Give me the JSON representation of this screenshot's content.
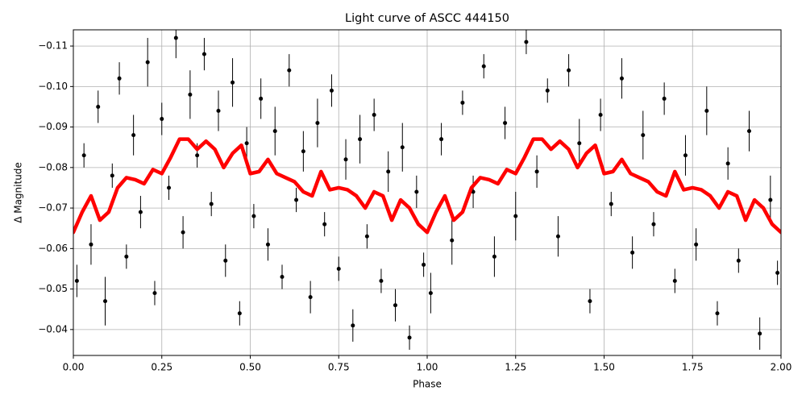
{
  "chart_data": {
    "type": "scatter",
    "title": "Light curve of ASCC 444150",
    "x_label": "Phase",
    "y_label": "Δ Magnitude",
    "xlim": [
      0,
      2
    ],
    "ylim": [
      -0.0336,
      -0.114
    ],
    "grid": true,
    "xticks": [
      {
        "value": 0,
        "label": "0.00"
      },
      {
        "value": 0.25,
        "label": "0.25"
      },
      {
        "value": 0.5,
        "label": "0.50"
      },
      {
        "value": 0.75,
        "label": "0.75"
      },
      {
        "value": 1,
        "label": "1.00"
      },
      {
        "value": 1.25,
        "label": "1.25"
      },
      {
        "value": 1.5,
        "label": "1.50"
      },
      {
        "value": 1.75,
        "label": "1.75"
      },
      {
        "value": 2,
        "label": "2.00"
      }
    ],
    "yticks": [
      {
        "value": -0.04,
        "label": "−0.04"
      },
      {
        "value": -0.05,
        "label": "−0.05"
      },
      {
        "value": -0.06,
        "label": "−0.06"
      },
      {
        "value": -0.07,
        "label": "−0.07"
      },
      {
        "value": -0.08,
        "label": "−0.08"
      },
      {
        "value": -0.09,
        "label": "−0.09"
      },
      {
        "value": -0.1,
        "label": "−0.10"
      },
      {
        "value": -0.11,
        "label": "−0.11"
      }
    ],
    "series": [
      {
        "type": "scatter",
        "color": "#000000",
        "x": [
          0.01,
          0.03,
          0.05,
          0.07,
          0.09,
          0.11,
          0.13,
          0.15,
          0.17,
          0.19,
          0.21,
          0.23,
          0.25,
          0.27,
          0.29,
          0.31,
          0.33,
          0.35,
          0.37,
          0.39,
          0.41,
          0.43,
          0.45,
          0.47,
          0.49,
          0.51,
          0.53,
          0.55,
          0.57,
          0.59,
          0.61,
          0.63,
          0.65,
          0.67,
          0.69,
          0.71,
          0.73,
          0.75,
          0.77,
          0.79,
          0.81,
          0.83,
          0.85,
          0.87,
          0.89,
          0.91,
          0.93,
          0.95,
          0.97,
          0.99,
          1.01,
          1.04,
          1.07,
          1.1,
          1.13,
          1.16,
          1.19,
          1.22,
          1.25,
          1.28,
          1.31,
          1.34,
          1.37,
          1.4,
          1.43,
          1.46,
          1.49,
          1.52,
          1.55,
          1.58,
          1.61,
          1.64,
          1.67,
          1.7,
          1.73,
          1.76,
          1.79,
          1.82,
          1.85,
          1.88,
          1.91,
          1.94,
          1.97,
          1.99
        ],
        "values": [
          -0.052,
          -0.083,
          -0.061,
          -0.095,
          -0.047,
          -0.078,
          -0.102,
          -0.058,
          -0.088,
          -0.069,
          -0.106,
          -0.049,
          -0.092,
          -0.075,
          -0.112,
          -0.064,
          -0.098,
          -0.083,
          -0.108,
          -0.071,
          -0.094,
          -0.057,
          -0.101,
          -0.044,
          -0.086,
          -0.068,
          -0.097,
          -0.061,
          -0.089,
          -0.053,
          -0.104,
          -0.072,
          -0.084,
          -0.048,
          -0.091,
          -0.066,
          -0.099,
          -0.055,
          -0.082,
          -0.041,
          -0.087,
          -0.063,
          -0.093,
          -0.052,
          -0.079,
          -0.046,
          -0.085,
          -0.038,
          -0.074,
          -0.056,
          -0.049,
          -0.087,
          -0.062,
          -0.096,
          -0.074,
          -0.105,
          -0.058,
          -0.091,
          -0.068,
          -0.111,
          -0.079,
          -0.099,
          -0.063,
          -0.104,
          -0.086,
          -0.047,
          -0.093,
          -0.071,
          -0.102,
          -0.059,
          -0.088,
          -0.066,
          -0.097,
          -0.052,
          -0.083,
          -0.061,
          -0.094,
          -0.044,
          -0.081,
          -0.057,
          -0.089,
          -0.039,
          -0.072,
          -0.054
        ],
        "yerr": [
          0.004,
          0.003,
          0.005,
          0.004,
          0.006,
          0.003,
          0.004,
          0.003,
          0.005,
          0.004,
          0.006,
          0.003,
          0.004,
          0.003,
          0.005,
          0.004,
          0.006,
          0.003,
          0.004,
          0.003,
          0.005,
          0.004,
          0.006,
          0.003,
          0.004,
          0.003,
          0.005,
          0.004,
          0.006,
          0.003,
          0.004,
          0.003,
          0.005,
          0.004,
          0.006,
          0.003,
          0.004,
          0.003,
          0.005,
          0.004,
          0.006,
          0.003,
          0.004,
          0.003,
          0.005,
          0.004,
          0.006,
          0.003,
          0.004,
          0.003,
          0.005,
          0.004,
          0.006,
          0.003,
          0.004,
          0.003,
          0.005,
          0.004,
          0.006,
          0.003,
          0.004,
          0.003,
          0.005,
          0.004,
          0.006,
          0.003,
          0.004,
          0.003,
          0.005,
          0.004,
          0.006,
          0.003,
          0.004,
          0.003,
          0.005,
          0.004,
          0.006,
          0.003,
          0.004,
          0.003,
          0.005,
          0.004,
          0.006,
          0.003
        ]
      },
      {
        "type": "line",
        "color": "#ff0000",
        "x": [
          0,
          0.025,
          0.05,
          0.075,
          0.1,
          0.125,
          0.15,
          0.175,
          0.2,
          0.225,
          0.25,
          0.275,
          0.3,
          0.325,
          0.35,
          0.375,
          0.4,
          0.425,
          0.45,
          0.475,
          0.5,
          0.525,
          0.55,
          0.575,
          0.6,
          0.625,
          0.65,
          0.675,
          0.7,
          0.725,
          0.75,
          0.775,
          0.8,
          0.825,
          0.85,
          0.875,
          0.9,
          0.925,
          0.95,
          0.975,
          1,
          1.025,
          1.05,
          1.075,
          1.1,
          1.125,
          1.15,
          1.175,
          1.2,
          1.225,
          1.25,
          1.275,
          1.3,
          1.325,
          1.35,
          1.375,
          1.4,
          1.425,
          1.45,
          1.475,
          1.5,
          1.525,
          1.55,
          1.575,
          1.6,
          1.625,
          1.65,
          1.675,
          1.7,
          1.725,
          1.75,
          1.775,
          1.8,
          1.825,
          1.85,
          1.875,
          1.9,
          1.925,
          1.95,
          1.975,
          2
        ],
        "values": [
          -0.064,
          -0.069,
          -0.073,
          -0.067,
          -0.069,
          -0.075,
          -0.0775,
          -0.077,
          -0.076,
          -0.0795,
          -0.0785,
          -0.0825,
          -0.087,
          -0.087,
          -0.0845,
          -0.0865,
          -0.0845,
          -0.08,
          -0.0835,
          -0.0855,
          -0.0785,
          -0.079,
          -0.082,
          -0.0785,
          -0.0775,
          -0.0765,
          -0.074,
          -0.073,
          -0.079,
          -0.0745,
          -0.075,
          -0.0745,
          -0.073,
          -0.07,
          -0.074,
          -0.073,
          -0.067,
          -0.072,
          -0.07,
          -0.066,
          -0.064,
          -0.069,
          -0.073,
          -0.067,
          -0.069,
          -0.075,
          -0.0775,
          -0.077,
          -0.076,
          -0.0795,
          -0.0785,
          -0.0825,
          -0.087,
          -0.087,
          -0.0845,
          -0.0865,
          -0.0845,
          -0.08,
          -0.0835,
          -0.0855,
          -0.0785,
          -0.079,
          -0.082,
          -0.0785,
          -0.0775,
          -0.0765,
          -0.074,
          -0.073,
          -0.079,
          -0.0745,
          -0.075,
          -0.0745,
          -0.073,
          -0.07,
          -0.074,
          -0.073,
          -0.067,
          -0.072,
          -0.07,
          -0.066,
          -0.064
        ]
      }
    ]
  }
}
